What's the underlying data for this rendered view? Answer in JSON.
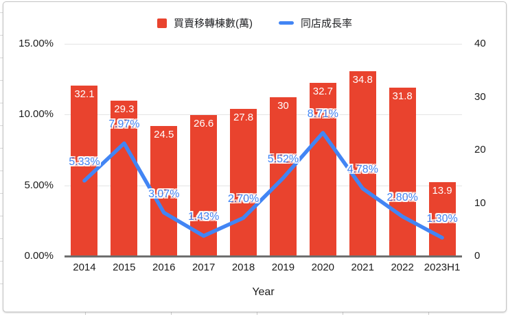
{
  "colors": {
    "bar": "#e9432e",
    "line": "#4285f4",
    "axis_text": "#1b1b1b",
    "gridline": "#e4e4e4",
    "axis_line": "#6e6e6e",
    "bar_label_text": "#ffffff",
    "line_label_text": "#4285f4"
  },
  "chart_data": {
    "type": "bar+line",
    "categories": [
      "2014",
      "2015",
      "2016",
      "2017",
      "2018",
      "2019",
      "2020",
      "2021",
      "2022",
      "2023H1"
    ],
    "series": [
      {
        "name": "買賣移轉棟數(萬)",
        "type": "bar",
        "axis": "right",
        "color": "#e9432e",
        "values": [
          32.1,
          29.3,
          24.5,
          26.6,
          27.8,
          30,
          32.7,
          34.8,
          31.8,
          13.9
        ],
        "labels": [
          "32.1",
          "29.3",
          "24.5",
          "26.6",
          "27.8",
          "30",
          "32.7",
          "34.8",
          "31.8",
          "13.9"
        ]
      },
      {
        "name": "同店成長率",
        "type": "line",
        "axis": "left",
        "color": "#4285f4",
        "values": [
          5.33,
          7.97,
          3.07,
          1.43,
          2.7,
          5.52,
          8.71,
          4.78,
          2.8,
          1.3
        ],
        "labels": [
          "5.33%",
          "7.97%",
          "3.07%",
          "1.43%",
          "2.70%",
          "5.52%",
          "8.71%",
          "4.78%",
          "2.80%",
          "1.30%"
        ]
      }
    ],
    "title": "",
    "xlabel": "Year",
    "ylabel": "",
    "left_axis": {
      "ticks": [
        "0.00%",
        "5.00%",
        "10.00%",
        "15.00%"
      ],
      "min": 0,
      "max": 15
    },
    "right_axis": {
      "ticks": [
        "0",
        "10",
        "20",
        "30",
        "40"
      ],
      "min": 0,
      "max": 40
    },
    "grid": true,
    "legend_position": "top"
  }
}
